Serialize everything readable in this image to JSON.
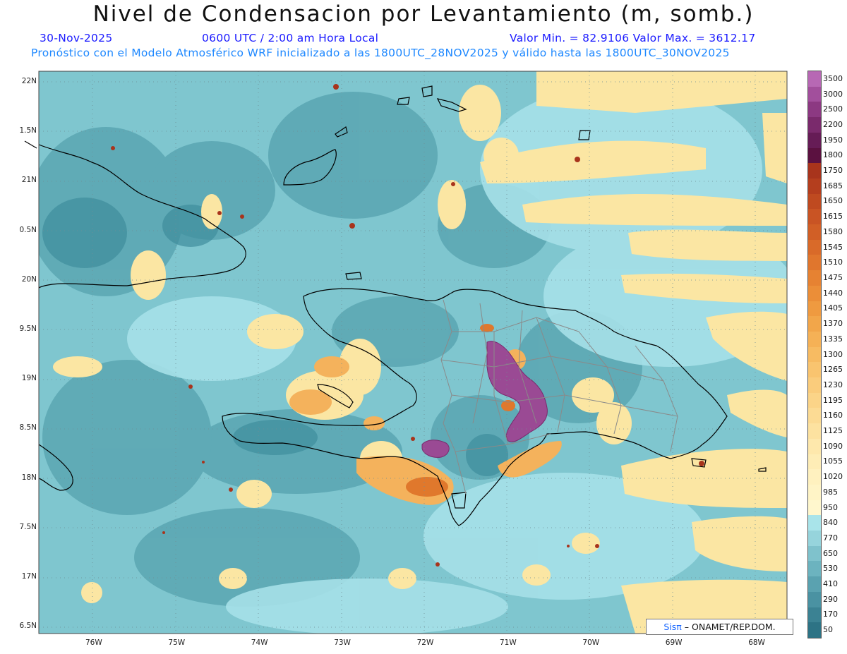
{
  "header": {
    "title": "Nivel de Condensacion por Levantamiento (m, somb.)",
    "date": "30-Nov-2025",
    "time": "0600 UTC / 2:00 am Hora Local",
    "minmax": "Valor Min. = 82.9106  Valor Max. = 3612.17",
    "model": "Pronóstico con el Modelo Atmosférico WRF inicializado a las 1800UTC_28NOV2025 y válido hasta las  1800UTC_30NOV2025"
  },
  "axes": {
    "lat_labels": [
      "22N",
      "1.5N",
      "21N",
      "0.5N",
      "20N",
      "9.5N",
      "19N",
      "8.5N",
      "18N",
      "7.5N",
      "17N",
      "6.5N"
    ],
    "lon_labels": [
      "76W",
      "75W",
      "74W",
      "73W",
      "72W",
      "71W",
      "70W",
      "69W",
      "68W"
    ]
  },
  "colorbar": {
    "labels": [
      "3500",
      "3000",
      "2500",
      "2200",
      "1950",
      "1800",
      "1750",
      "1685",
      "1650",
      "1615",
      "1580",
      "1545",
      "1510",
      "1475",
      "1440",
      "1405",
      "1370",
      "1335",
      "1300",
      "1265",
      "1230",
      "1195",
      "1160",
      "1125",
      "1090",
      "1055",
      "1020",
      "985",
      "950",
      "840",
      "770",
      "650",
      "530",
      "410",
      "290",
      "170",
      "50"
    ],
    "colors": [
      "#b768b4",
      "#a24f9c",
      "#8c3982",
      "#7a2a6c",
      "#661c56",
      "#5b1140",
      "#a8341c",
      "#b43e1e",
      "#bf4a20",
      "#c95424",
      "#d15f26",
      "#d96a29",
      "#e0762d",
      "#e68232",
      "#eb8e38",
      "#ef9a40",
      "#f2a64a",
      "#f5b156",
      "#f7bb62",
      "#f9c46f",
      "#facc7c",
      "#fbd488",
      "#fcdb94",
      "#fde2a0",
      "#fee8ac",
      "#feedb6",
      "#fff1bf",
      "#fff4c6",
      "#fff7cd",
      "#a9e4ea",
      "#96d4dc",
      "#7fc2cc",
      "#6cb3bf",
      "#5aa2b0",
      "#4a92a2",
      "#3b8293",
      "#2d7385"
    ]
  },
  "credit": {
    "brand": "Sisπ",
    "text": "– ONAMET/REP.DOM."
  }
}
